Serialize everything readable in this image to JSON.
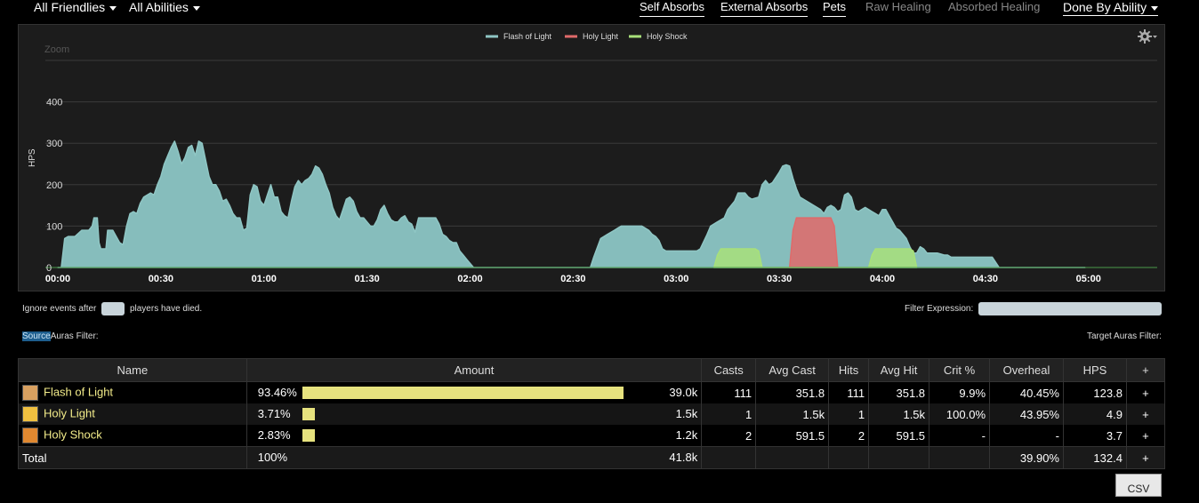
{
  "filters": {
    "friendlies_label": "All Friendlies",
    "abilities_label": "All Abilities",
    "done_by_label": "Done By Ability"
  },
  "tabs": [
    {
      "label": "Self Absorbs",
      "active": true
    },
    {
      "label": "External Absorbs",
      "active": true
    },
    {
      "label": "Pets",
      "active": true
    },
    {
      "label": "Raw Healing",
      "active": false
    },
    {
      "label": "Absorbed Healing",
      "active": false
    }
  ],
  "chart_data": {
    "type": "area",
    "zoom_label": "Zoom",
    "ylabel": "HPS",
    "ylim": [
      0,
      500
    ],
    "yticks": [
      "0",
      "100",
      "200",
      "300",
      "400"
    ],
    "xticks": [
      "00:00",
      "00:30",
      "01:00",
      "01:30",
      "02:00",
      "02:30",
      "03:00",
      "03:30",
      "04:00",
      "04:30",
      "05:00"
    ],
    "xlim_seconds": [
      0,
      320
    ],
    "legend_position": "top-center",
    "series": [
      {
        "name": "Flash of Light",
        "color": "#8fc6c4",
        "points": [
          [
            0,
            0
          ],
          [
            1,
            0
          ],
          [
            2,
            70
          ],
          [
            3,
            75
          ],
          [
            5,
            75
          ],
          [
            7,
            90
          ],
          [
            9,
            90
          ],
          [
            10,
            100
          ],
          [
            10.5,
            120
          ],
          [
            11.5,
            120
          ],
          [
            12,
            60
          ],
          [
            12.5,
            45
          ],
          [
            14,
            45
          ],
          [
            14.5,
            90
          ],
          [
            16,
            90
          ],
          [
            18,
            60
          ],
          [
            19,
            55
          ],
          [
            20,
            100
          ],
          [
            21,
            130
          ],
          [
            22,
            135
          ],
          [
            23,
            130
          ],
          [
            24,
            155
          ],
          [
            25,
            170
          ],
          [
            27,
            180
          ],
          [
            28,
            175
          ],
          [
            29,
            200
          ],
          [
            30,
            220
          ],
          [
            31,
            250
          ],
          [
            32,
            270
          ],
          [
            33,
            290
          ],
          [
            34,
            305
          ],
          [
            35,
            280
          ],
          [
            36,
            250
          ],
          [
            37,
            265
          ],
          [
            38,
            290
          ],
          [
            39,
            295
          ],
          [
            40,
            270
          ],
          [
            41,
            305
          ],
          [
            42,
            300
          ],
          [
            43,
            260
          ],
          [
            44,
            220
          ],
          [
            45,
            200
          ],
          [
            46,
            200
          ],
          [
            47,
            185
          ],
          [
            48,
            160
          ],
          [
            49,
            165
          ],
          [
            50,
            150
          ],
          [
            51,
            130
          ],
          [
            52,
            120
          ],
          [
            53,
            120
          ],
          [
            54,
            90
          ],
          [
            55,
            95
          ],
          [
            56,
            175
          ],
          [
            57,
            200
          ],
          [
            58,
            195
          ],
          [
            59,
            160
          ],
          [
            60,
            150
          ],
          [
            61,
            175
          ],
          [
            62,
            200
          ],
          [
            63,
            170
          ],
          [
            64,
            170
          ],
          [
            65,
            135
          ],
          [
            66,
            125
          ],
          [
            67,
            120
          ],
          [
            68,
            160
          ],
          [
            69,
            195
          ],
          [
            70,
            210
          ],
          [
            71,
            200
          ],
          [
            72,
            210
          ],
          [
            73,
            215
          ],
          [
            74,
            225
          ],
          [
            75,
            245
          ],
          [
            76,
            240
          ],
          [
            77,
            225
          ],
          [
            78,
            200
          ],
          [
            79,
            180
          ],
          [
            80,
            145
          ],
          [
            81,
            125
          ],
          [
            82,
            115
          ],
          [
            83,
            140
          ],
          [
            84,
            165
          ],
          [
            85,
            170
          ],
          [
            86,
            160
          ],
          [
            87,
            135
          ],
          [
            88,
            120
          ],
          [
            89,
            120
          ],
          [
            90,
            110
          ],
          [
            91,
            100
          ],
          [
            92,
            100
          ],
          [
            93,
            115
          ],
          [
            94,
            140
          ],
          [
            95,
            150
          ],
          [
            96,
            130
          ],
          [
            97,
            115
          ],
          [
            98,
            110
          ],
          [
            99,
            110
          ],
          [
            100,
            120
          ],
          [
            101,
            125
          ],
          [
            102,
            110
          ],
          [
            103,
            105
          ],
          [
            104,
            85
          ],
          [
            105,
            120
          ],
          [
            106,
            120
          ],
          [
            108,
            120
          ],
          [
            110,
            120
          ],
          [
            111,
            105
          ],
          [
            112,
            80
          ],
          [
            113,
            75
          ],
          [
            114,
            65
          ],
          [
            115,
            60
          ],
          [
            116,
            60
          ],
          [
            117,
            40
          ],
          [
            118,
            30
          ],
          [
            119,
            20
          ],
          [
            120,
            10
          ],
          [
            121,
            0
          ],
          [
            124,
            0
          ],
          [
            127,
            0
          ],
          [
            130,
            0
          ],
          [
            140,
            0
          ],
          [
            150,
            0
          ],
          [
            155,
            0
          ],
          [
            156,
            25
          ],
          [
            158,
            70
          ],
          [
            160,
            80
          ],
          [
            162,
            90
          ],
          [
            163,
            95
          ],
          [
            164,
            100
          ],
          [
            170,
            100
          ],
          [
            172,
            90
          ],
          [
            173,
            80
          ],
          [
            174,
            75
          ],
          [
            175,
            65
          ],
          [
            176,
            45
          ],
          [
            177,
            40
          ],
          [
            180,
            40
          ],
          [
            181,
            40
          ],
          [
            186,
            40
          ],
          [
            187,
            45
          ],
          [
            189,
            80
          ],
          [
            190,
            100
          ],
          [
            192,
            110
          ],
          [
            193,
            115
          ],
          [
            194,
            120
          ],
          [
            195,
            140
          ],
          [
            197,
            160
          ],
          [
            198,
            180
          ],
          [
            200,
            180
          ],
          [
            201,
            170
          ],
          [
            202,
            165
          ],
          [
            204,
            170
          ],
          [
            205,
            200
          ],
          [
            206,
            210
          ],
          [
            207,
            200
          ],
          [
            208,
            205
          ],
          [
            210,
            230
          ],
          [
            211,
            245
          ],
          [
            212,
            248
          ],
          [
            213,
            245
          ],
          [
            214,
            215
          ],
          [
            215,
            190
          ],
          [
            216,
            170
          ],
          [
            218,
            160
          ],
          [
            220,
            150
          ],
          [
            222,
            140
          ],
          [
            223,
            130
          ],
          [
            224,
            145
          ],
          [
            225,
            150
          ],
          [
            226,
            145
          ],
          [
            227,
            135
          ],
          [
            228,
            140
          ],
          [
            229,
            175
          ],
          [
            230,
            180
          ],
          [
            231,
            170
          ],
          [
            232,
            140
          ],
          [
            233,
            135
          ],
          [
            234,
            140
          ],
          [
            235,
            145
          ],
          [
            236,
            140
          ],
          [
            237,
            135
          ],
          [
            238,
            130
          ],
          [
            239,
            125
          ],
          [
            240,
            140
          ],
          [
            241,
            140
          ],
          [
            242,
            125
          ],
          [
            243,
            110
          ],
          [
            244,
            95
          ],
          [
            245,
            90
          ],
          [
            246,
            80
          ],
          [
            247,
            70
          ],
          [
            248,
            50
          ],
          [
            249,
            35
          ],
          [
            250,
            35
          ],
          [
            251,
            50
          ],
          [
            252,
            45
          ],
          [
            253,
            35
          ],
          [
            254,
            35
          ],
          [
            256,
            35
          ],
          [
            258,
            30
          ],
          [
            259,
            30
          ],
          [
            260,
            25
          ],
          [
            261,
            25
          ],
          [
            262,
            25
          ],
          [
            264,
            25
          ],
          [
            266,
            25
          ],
          [
            268,
            25
          ],
          [
            270,
            25
          ],
          [
            272,
            25
          ],
          [
            274,
            0
          ],
          [
            276,
            0
          ],
          [
            278,
            0
          ],
          [
            280,
            0
          ],
          [
            290,
            0
          ],
          [
            298,
            0
          ],
          [
            299,
            0
          ]
        ]
      },
      {
        "name": "Holy Light",
        "color": "#e06a6a",
        "points": [
          [
            213,
            0
          ],
          [
            214,
            90
          ],
          [
            215,
            120
          ],
          [
            216,
            120
          ],
          [
            217,
            120
          ],
          [
            218,
            120
          ],
          [
            219,
            120
          ],
          [
            220,
            120
          ],
          [
            221,
            120
          ],
          [
            222,
            120
          ],
          [
            223,
            120
          ],
          [
            224,
            120
          ],
          [
            225,
            120
          ],
          [
            226,
            100
          ],
          [
            227,
            0
          ]
        ]
      },
      {
        "name": "Holy Shock",
        "color": "#a8e07a",
        "points": [
          [
            191,
            0
          ],
          [
            192,
            30
          ],
          [
            193,
            45
          ],
          [
            194,
            45
          ],
          [
            195,
            45
          ],
          [
            196,
            45
          ],
          [
            197,
            45
          ],
          [
            198,
            45
          ],
          [
            199,
            45
          ],
          [
            200,
            45
          ],
          [
            201,
            45
          ],
          [
            202,
            45
          ],
          [
            203,
            45
          ],
          [
            204,
            40
          ],
          [
            205,
            0
          ],
          [
            236,
            0
          ],
          [
            237,
            30
          ],
          [
            238,
            45
          ],
          [
            239,
            45
          ],
          [
            240,
            45
          ],
          [
            241,
            45
          ],
          [
            242,
            45
          ],
          [
            243,
            45
          ],
          [
            244,
            45
          ],
          [
            245,
            45
          ],
          [
            246,
            45
          ],
          [
            247,
            45
          ],
          [
            248,
            45
          ],
          [
            249,
            40
          ],
          [
            250,
            0
          ]
        ]
      }
    ]
  },
  "controls": {
    "ignore_prefix": "Ignore events after",
    "ignore_suffix": "players have died.",
    "filter_expression_label": "Filter Expression:",
    "source_link": "Source",
    "auras_filter_label": "Auras Filter:",
    "target_auras_label": "Target Auras Filter:"
  },
  "table": {
    "headers": [
      "Name",
      "Amount",
      "Casts",
      "Avg Cast",
      "Hits",
      "Avg Hit",
      "Crit %",
      "Overheal",
      "HPS",
      "+"
    ],
    "rows": [
      {
        "name": "Flash of Light",
        "pct": "93.46%",
        "bar": 0.9346,
        "amount": "39.0k",
        "casts": "111",
        "avg_cast": "351.8",
        "hits": "111",
        "avg_hit": "351.8",
        "crit": "9.9%",
        "overheal": "40.45%",
        "hps": "123.8",
        "plus": "+",
        "icon": "flash-of-light-icon",
        "icon_color": "#d8a060"
      },
      {
        "name": "Holy Light",
        "pct": "3.71%",
        "bar": 0.0371,
        "amount": "1.5k",
        "casts": "1",
        "avg_cast": "1.5k",
        "hits": "1",
        "avg_hit": "1.5k",
        "crit": "100.0%",
        "overheal": "43.95%",
        "hps": "4.9",
        "plus": "+",
        "icon": "holy-light-icon",
        "icon_color": "#f0c040"
      },
      {
        "name": "Holy Shock",
        "pct": "2.83%",
        "bar": 0.0283,
        "amount": "1.2k",
        "casts": "2",
        "avg_cast": "591.5",
        "hits": "2",
        "avg_hit": "591.5",
        "crit": "-",
        "overheal": "-",
        "hps": "3.7",
        "plus": "+",
        "icon": "holy-shock-icon",
        "icon_color": "#e08830"
      }
    ],
    "total": {
      "label": "Total",
      "pct": "100%",
      "amount": "41.8k",
      "overheal": "39.90%",
      "hps": "132.4",
      "plus": "+"
    }
  },
  "csv_label": "CSV"
}
